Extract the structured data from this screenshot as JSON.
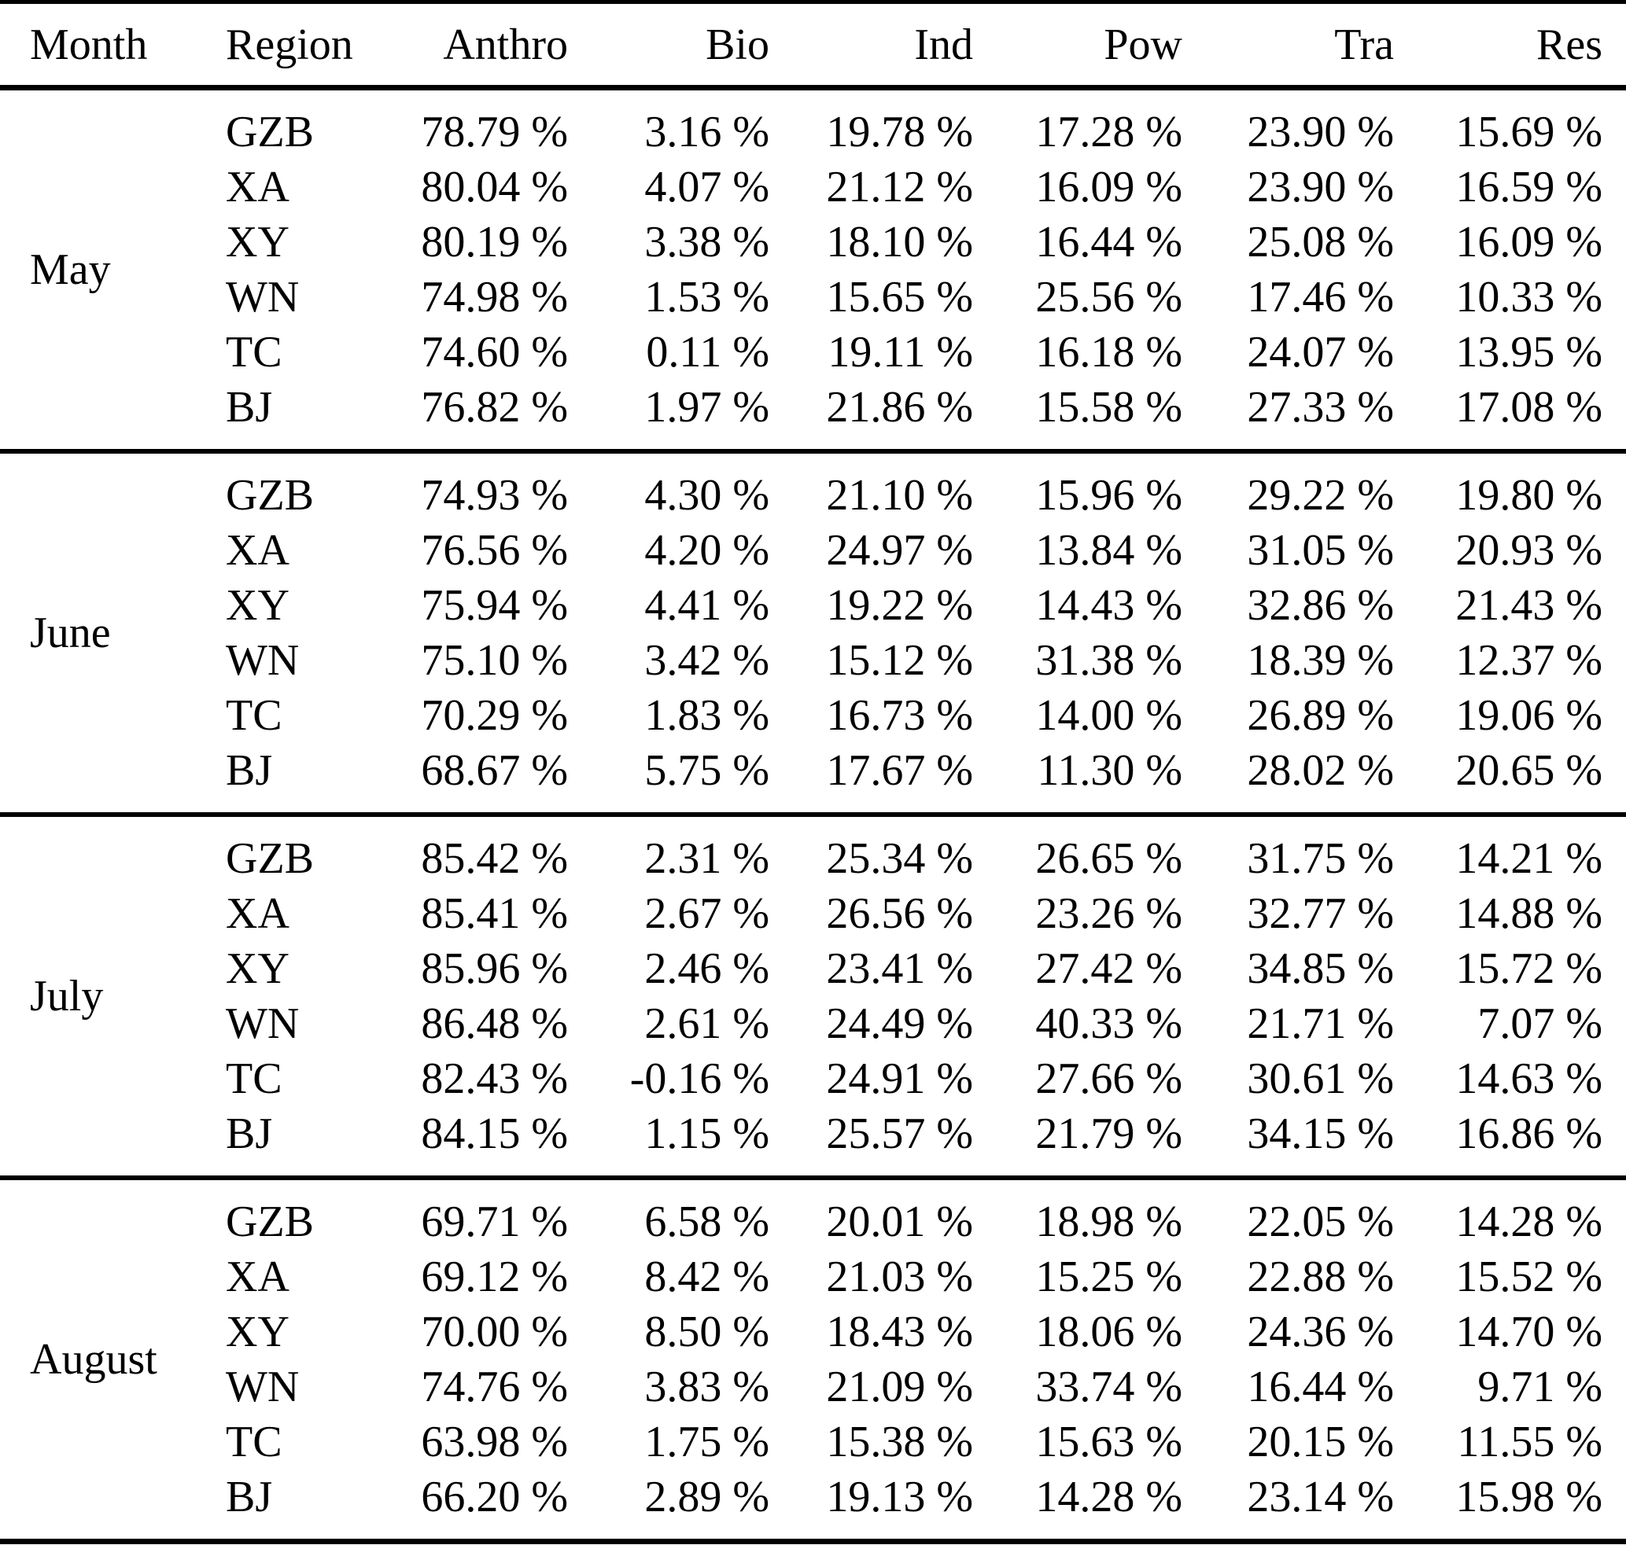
{
  "table": {
    "columns": [
      "Month",
      "Region",
      "Anthro",
      "Bio",
      "Ind",
      "Pow",
      "Tra",
      "Res"
    ],
    "sections": [
      {
        "month": "May",
        "rows": [
          [
            "GZB",
            "78.79 %",
            "3.16 %",
            "19.78 %",
            "17.28 %",
            "23.90 %",
            "15.69 %"
          ],
          [
            "XA",
            "80.04 %",
            "4.07 %",
            "21.12 %",
            "16.09 %",
            "23.90 %",
            "16.59 %"
          ],
          [
            "XY",
            "80.19 %",
            "3.38 %",
            "18.10 %",
            "16.44 %",
            "25.08 %",
            "16.09 %"
          ],
          [
            "WN",
            "74.98 %",
            "1.53 %",
            "15.65 %",
            "25.56 %",
            "17.46 %",
            "10.33 %"
          ],
          [
            "TC",
            "74.60 %",
            "0.11 %",
            "19.11 %",
            "16.18 %",
            "24.07 %",
            "13.95 %"
          ],
          [
            "BJ",
            "76.82 %",
            "1.97 %",
            "21.86 %",
            "15.58 %",
            "27.33 %",
            "17.08 %"
          ]
        ]
      },
      {
        "month": "June",
        "rows": [
          [
            "GZB",
            "74.93 %",
            "4.30 %",
            "21.10 %",
            "15.96 %",
            "29.22 %",
            "19.80 %"
          ],
          [
            "XA",
            "76.56 %",
            "4.20 %",
            "24.97 %",
            "13.84 %",
            "31.05 %",
            "20.93 %"
          ],
          [
            "XY",
            "75.94 %",
            "4.41 %",
            "19.22 %",
            "14.43 %",
            "32.86 %",
            "21.43 %"
          ],
          [
            "WN",
            "75.10 %",
            "3.42 %",
            "15.12 %",
            "31.38 %",
            "18.39 %",
            "12.37 %"
          ],
          [
            "TC",
            "70.29 %",
            "1.83 %",
            "16.73 %",
            "14.00 %",
            "26.89 %",
            "19.06 %"
          ],
          [
            "BJ",
            "68.67 %",
            "5.75 %",
            "17.67 %",
            "11.30 %",
            "28.02 %",
            "20.65 %"
          ]
        ]
      },
      {
        "month": "July",
        "rows": [
          [
            "GZB",
            "85.42 %",
            "2.31 %",
            "25.34 %",
            "26.65 %",
            "31.75 %",
            "14.21 %"
          ],
          [
            "XA",
            "85.41 %",
            "2.67 %",
            "26.56 %",
            "23.26 %",
            "32.77 %",
            "14.88 %"
          ],
          [
            "XY",
            "85.96 %",
            "2.46 %",
            "23.41 %",
            "27.42 %",
            "34.85 %",
            "15.72 %"
          ],
          [
            "WN",
            "86.48 %",
            "2.61 %",
            "24.49 %",
            "40.33 %",
            "21.71 %",
            "7.07 %"
          ],
          [
            "TC",
            "82.43 %",
            "-0.16 %",
            "24.91 %",
            "27.66 %",
            "30.61 %",
            "14.63 %"
          ],
          [
            "BJ",
            "84.15 %",
            "1.15 %",
            "25.57 %",
            "21.79 %",
            "34.15 %",
            "16.86 %"
          ]
        ]
      },
      {
        "month": "August",
        "rows": [
          [
            "GZB",
            "69.71 %",
            "6.58 %",
            "20.01 %",
            "18.98 %",
            "22.05 %",
            "14.28 %"
          ],
          [
            "XA",
            "69.12 %",
            "8.42 %",
            "21.03 %",
            "15.25 %",
            "22.88 %",
            "15.52 %"
          ],
          [
            "XY",
            "70.00 %",
            "8.50 %",
            "18.43 %",
            "18.06 %",
            "24.36 %",
            "14.70 %"
          ],
          [
            "WN",
            "74.76 %",
            "3.83 %",
            "21.09 %",
            "33.74 %",
            "16.44 %",
            "9.71 %"
          ],
          [
            "TC",
            "63.98 %",
            "1.75 %",
            "15.38 %",
            "15.63 %",
            "20.15 %",
            "11.55 %"
          ],
          [
            "BJ",
            "66.20 %",
            "2.89 %",
            "19.13 %",
            "14.28 %",
            "23.14 %",
            "15.98 %"
          ]
        ]
      }
    ]
  }
}
